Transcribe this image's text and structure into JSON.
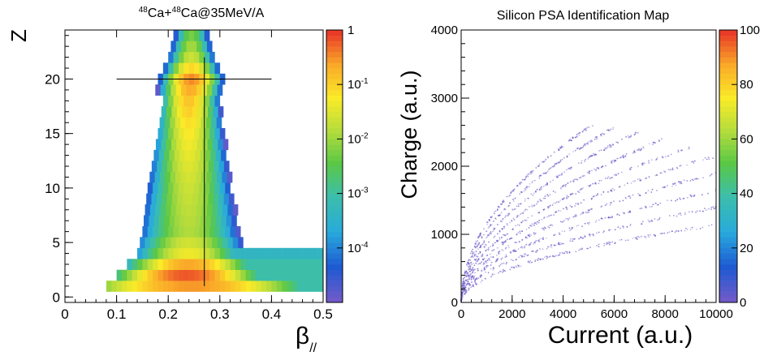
{
  "chart_data": [
    {
      "type": "heatmap",
      "title_parts": {
        "sup1": "48",
        "part1": "Ca+",
        "sup2": "48",
        "part2": "Ca@35MeV/A"
      },
      "ylabel": "Z",
      "xlabel": {
        "symbol": "β",
        "subscript": "//"
      },
      "xlim": [
        0,
        0.5
      ],
      "ylim": [
        -0.5,
        24.5
      ],
      "xticks": [
        "0",
        "0.1",
        "0.2",
        "0.3",
        "0.4",
        "0.5"
      ],
      "yticks": [
        "0",
        "5",
        "10",
        "15",
        "20"
      ],
      "colorbar": {
        "scale": "log",
        "range": [
          1e-05,
          1
        ],
        "labels": [
          {
            "value": "1",
            "exp": ""
          },
          {
            "value": "10",
            "exp": "-1"
          },
          {
            "value": "10",
            "exp": "-2"
          },
          {
            "value": "10",
            "exp": "-3"
          },
          {
            "value": "10",
            "exp": "-4"
          }
        ]
      },
      "ridge": [
        {
          "z": 1,
          "center": 0.245,
          "width": 0.13,
          "peak": 0.25,
          "x_min": 0.08,
          "x_max": 0.5
        },
        {
          "z": 2,
          "center": 0.235,
          "width": 0.08,
          "peak": 0.55,
          "x_min": 0.1,
          "x_max": 0.5
        },
        {
          "z": 3,
          "center": 0.24,
          "width": 0.07,
          "peak": 0.2,
          "x_min": 0.12,
          "x_max": 0.5
        },
        {
          "z": 4,
          "center": 0.24,
          "width": 0.06,
          "peak": 0.04,
          "x_min": 0.14,
          "x_max": 0.5
        },
        {
          "z": 6,
          "center": 0.24,
          "width": 0.055,
          "peak": 0.012,
          "x_min": 0.15,
          "x_max": 0.34
        },
        {
          "z": 10,
          "center": 0.24,
          "width": 0.045,
          "peak": 0.02,
          "x_min": 0.16,
          "x_max": 0.33
        },
        {
          "z": 15,
          "center": 0.24,
          "width": 0.035,
          "peak": 0.05,
          "x_min": 0.18,
          "x_max": 0.31
        },
        {
          "z": 18,
          "center": 0.24,
          "width": 0.03,
          "peak": 0.12,
          "x_min": 0.19,
          "x_max": 0.3
        },
        {
          "z": 20,
          "center": 0.245,
          "width": 0.03,
          "peak": 0.3,
          "x_min": 0.1,
          "x_max": 0.35
        },
        {
          "z": 22,
          "center": 0.245,
          "width": 0.025,
          "peak": 0.02,
          "x_min": 0.2,
          "x_max": 0.29
        },
        {
          "z": 24,
          "center": 0.245,
          "width": 0.02,
          "peak": 0.005,
          "x_min": 0.21,
          "x_max": 0.28
        }
      ],
      "reference_lines": {
        "z": 20,
        "beta": 0.27
      }
    },
    {
      "type": "scatter",
      "title": "Silicon PSA Identification Map",
      "xlabel": "Current (a.u.)",
      "ylabel": "Charge (a.u.)",
      "xlim": [
        0,
        10000
      ],
      "ylim": [
        0,
        4000
      ],
      "xticks": [
        "0",
        "2000",
        "4000",
        "6000",
        "8000",
        "10000"
      ],
      "yticks": [
        "0",
        "1000",
        "2000",
        "3000",
        "4000"
      ],
      "colorbar": {
        "range": [
          0,
          100
        ],
        "labels": [
          "100",
          "80",
          "60",
          "40",
          "20",
          "0"
        ]
      },
      "bands": [
        {
          "charge_at_current_1000": 1150,
          "current_max": 5200
        },
        {
          "charge_at_current_1000": 1050,
          "current_max": 6000
        },
        {
          "charge_at_current_1000": 950,
          "current_max": 7000
        },
        {
          "charge_at_current_1000": 850,
          "current_max": 8000
        },
        {
          "charge_at_current_1000": 760,
          "current_max": 9000
        },
        {
          "charge_at_current_1000": 680,
          "current_max": 10000
        },
        {
          "charge_at_current_1000": 600,
          "current_max": 10000
        },
        {
          "charge_at_current_1000": 520,
          "current_max": 10000
        },
        {
          "charge_at_current_1000": 440,
          "current_max": 10000
        },
        {
          "charge_at_current_1000": 360,
          "current_max": 10000
        }
      ]
    }
  ]
}
